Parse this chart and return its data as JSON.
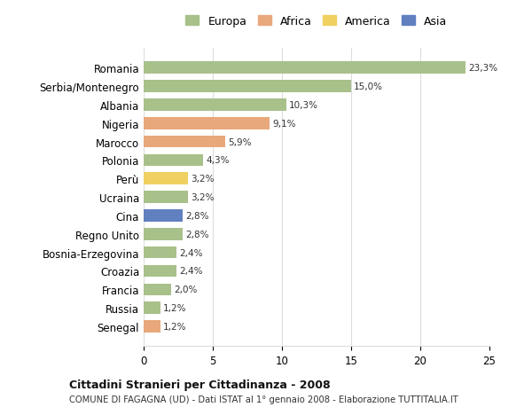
{
  "countries": [
    "Romania",
    "Serbia/Montenegro",
    "Albania",
    "Nigeria",
    "Marocco",
    "Polonia",
    "Perù",
    "Ucraina",
    "Cina",
    "Regno Unito",
    "Bosnia-Erzegovina",
    "Croazia",
    "Francia",
    "Russia",
    "Senegal"
  ],
  "values": [
    23.3,
    15.0,
    10.3,
    9.1,
    5.9,
    4.3,
    3.2,
    3.2,
    2.8,
    2.8,
    2.4,
    2.4,
    2.0,
    1.2,
    1.2
  ],
  "labels": [
    "23,3%",
    "15,0%",
    "10,3%",
    "9,1%",
    "5,9%",
    "4,3%",
    "3,2%",
    "3,2%",
    "2,8%",
    "2,8%",
    "2,4%",
    "2,4%",
    "2,0%",
    "1,2%",
    "1,2%"
  ],
  "continents": [
    "Europa",
    "Europa",
    "Europa",
    "Africa",
    "Africa",
    "Europa",
    "America",
    "Europa",
    "Asia",
    "Europa",
    "Europa",
    "Europa",
    "Europa",
    "Europa",
    "Africa"
  ],
  "colors": {
    "Europa": "#a8c08a",
    "Africa": "#e8a87c",
    "America": "#f0d060",
    "Asia": "#6080c0"
  },
  "legend_order": [
    "Europa",
    "Africa",
    "America",
    "Asia"
  ],
  "title_bold": "Cittadini Stranieri per Cittadinanza - 2008",
  "subtitle": "COMUNE DI FAGAGNA (UD) - Dati ISTAT al 1° gennaio 2008 - Elaborazione TUTTITALIA.IT",
  "xlim": [
    0,
    25
  ],
  "xticks": [
    0,
    5,
    10,
    15,
    20,
    25
  ],
  "background_color": "#ffffff",
  "grid_color": "#dddddd"
}
